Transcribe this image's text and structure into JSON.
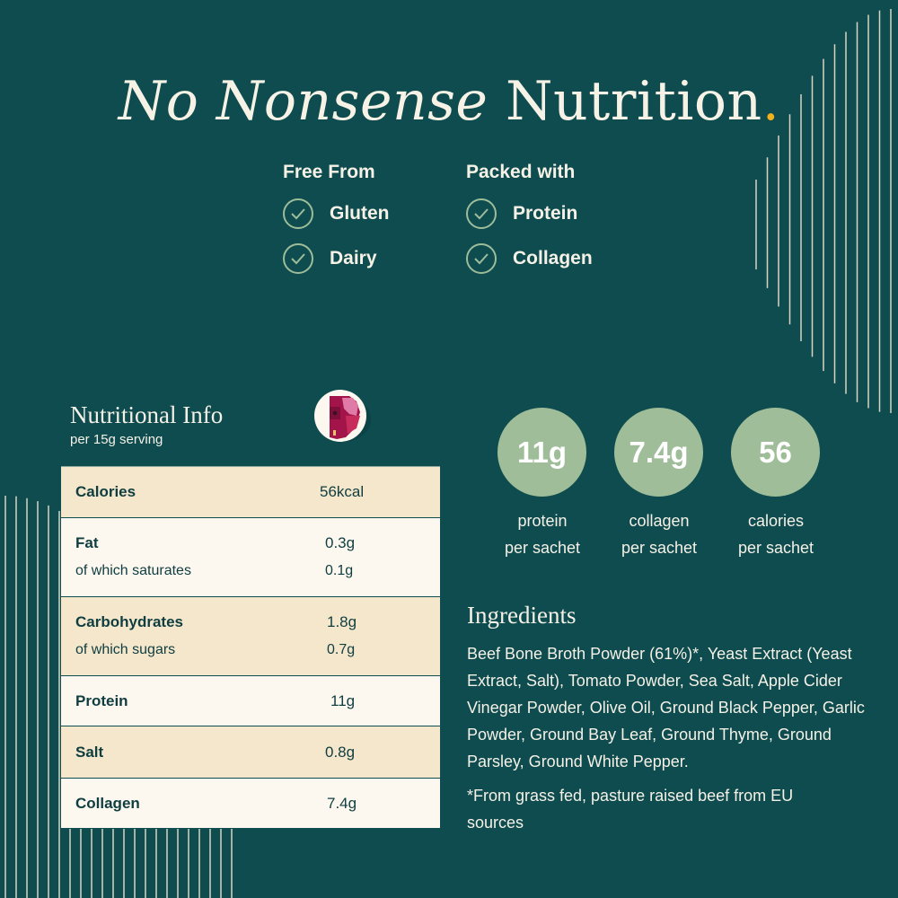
{
  "colors": {
    "background": "#0e4c4f",
    "accent_dot": "#f2b21b",
    "sage": "#9fbd98",
    "cream": "#f4e7cb",
    "ivory": "#fcf8ef",
    "text_dark": "#0f3d40"
  },
  "title": {
    "italic": "No Nonsense",
    "regular": " Nutrition",
    "dot": "."
  },
  "free_from": {
    "heading": "Free From",
    "items": [
      {
        "label": "Gluten",
        "icon": "check-circle-icon"
      },
      {
        "label": "Dairy",
        "icon": "check-circle-icon"
      }
    ]
  },
  "packed_with": {
    "heading": "Packed with",
    "items": [
      {
        "label": "Protein",
        "icon": "check-circle-icon"
      },
      {
        "label": "Collagen",
        "icon": "check-circle-icon"
      }
    ]
  },
  "nutrition": {
    "title": "Nutritional Info",
    "subtitle": "per 15g serving",
    "badge_icon": "cow-head-logo-icon",
    "rows": [
      {
        "name": "Calories",
        "value": "56kcal"
      },
      {
        "name": "Fat",
        "value": "0.3g",
        "sub_name": "of which saturates",
        "sub_value": "0.1g"
      },
      {
        "name": "Carbohydrates",
        "value": "1.8g",
        "sub_name": "of which sugars",
        "sub_value": "0.7g"
      },
      {
        "name": "Protein",
        "value": "11g"
      },
      {
        "name": "Salt",
        "value": "0.8g"
      },
      {
        "name": "Collagen",
        "value": "7.4g"
      }
    ]
  },
  "stats": [
    {
      "value": "11g",
      "line1": "protein",
      "line2": "per sachet"
    },
    {
      "value": "7.4g",
      "line1": "collagen",
      "line2": "per sachet"
    },
    {
      "value": "56",
      "line1": "calories",
      "line2": "per sachet"
    }
  ],
  "ingredients": {
    "title": "Ingredients",
    "text": "Beef Bone Broth Powder (61%)*, Yeast Extract (Yeast Extract, Salt), Tomato Powder, Sea Salt, Apple Cider Vinegar Powder, Olive Oil, Ground Black Pepper, Garlic Powder, Ground Bay Leaf, Ground Thyme, Ground Parsley, Ground White Pepper.",
    "note": "*From grass fed, pasture raised beef from EU sources"
  }
}
